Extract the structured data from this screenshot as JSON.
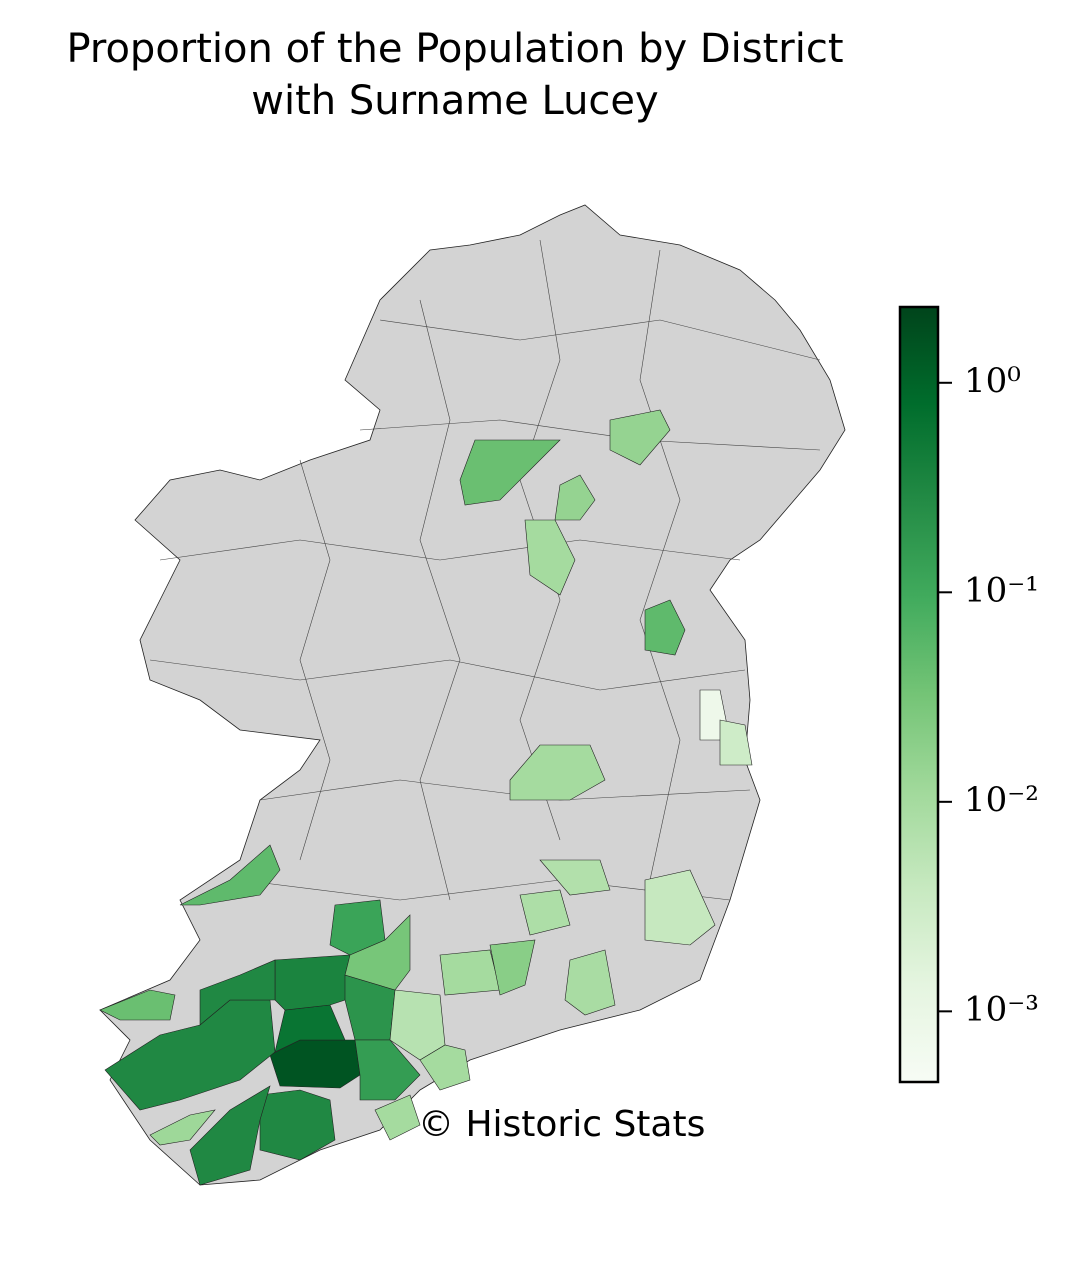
{
  "chart_data": {
    "type": "choropleth",
    "title": "Proportion of the Population by District",
    "subtitle": "with Surname Lucey",
    "values": [
      1.5,
      0.6,
      0.35,
      0.3,
      0.3,
      0.2,
      0.15,
      0.3,
      0.3,
      0.12,
      0.03,
      0.05,
      0.04,
      0.006,
      0.01,
      0.01,
      0.02,
      0.008,
      0.007,
      0.004,
      0.009,
      0.01,
      0.0008,
      0.003,
      0.05,
      0.04,
      0.015,
      0.01,
      0.015,
      0.012,
      0.01
    ],
    "ylim": [
      0.00046,
      2.3
    ],
    "log_scale": true,
    "yticks": [
      {
        "value": 1,
        "label": "10⁰"
      },
      {
        "value": 0.1,
        "label": "10⁻¹"
      },
      {
        "value": 0.01,
        "label": "10⁻²"
      },
      {
        "value": 0.001,
        "label": "10⁻³"
      }
    ],
    "missing_color": "#d3d3d3",
    "annotation": "© Historic Stats"
  }
}
